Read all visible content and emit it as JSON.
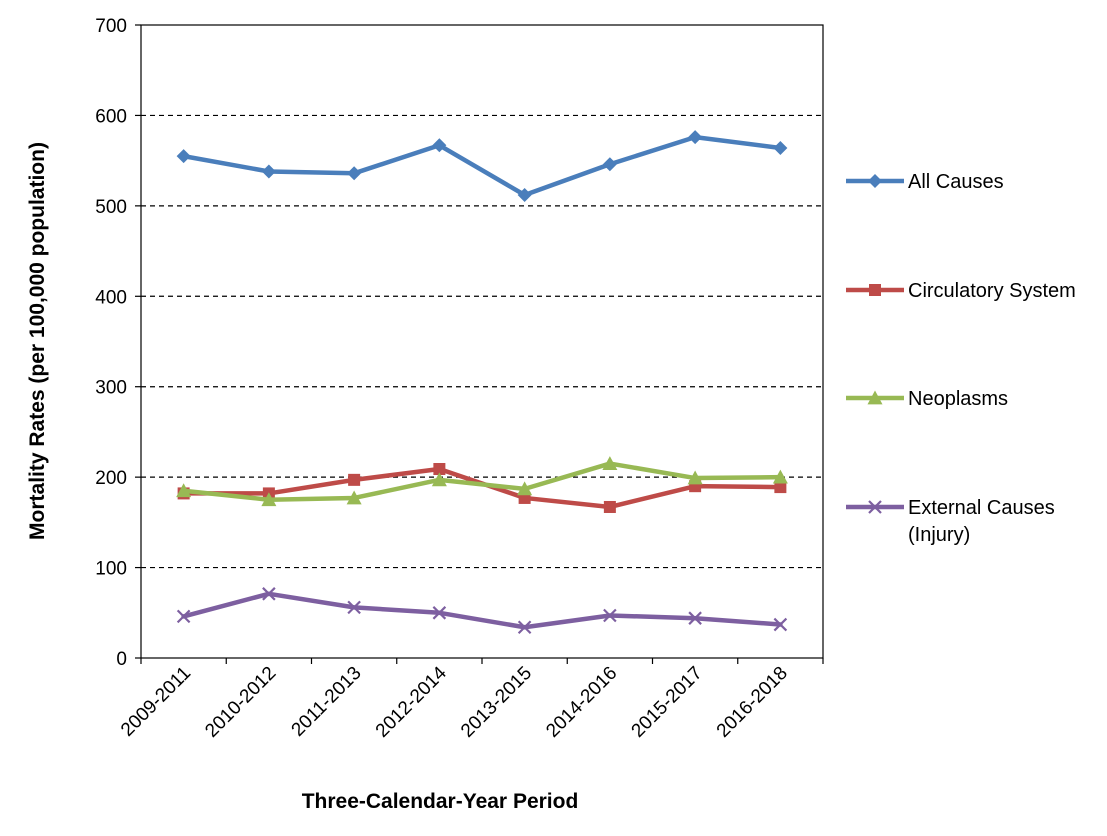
{
  "chart_data": {
    "type": "line",
    "title": "",
    "xlabel": "Three-Calendar-Year Period",
    "ylabel": "Mortality Rates (per 100,000 population)",
    "ylim": [
      0,
      700
    ],
    "yticks": [
      0,
      100,
      200,
      300,
      400,
      500,
      600,
      700
    ],
    "grid": "horizontal dashed",
    "legend_position": "right",
    "categories": [
      "2009-2011",
      "2010-2012",
      "2011-2013",
      "2012-2014",
      "2013-2015",
      "2014-2016",
      "2015-2017",
      "2016-2018"
    ],
    "series": [
      {
        "name": "All Causes",
        "name_lines": [
          "All Causes"
        ],
        "color": "#4a7ebb",
        "marker": "diamond",
        "values": [
          555,
          538,
          536,
          567,
          512,
          546,
          576,
          564
        ]
      },
      {
        "name": "Circulatory System",
        "name_lines": [
          "Circulatory System"
        ],
        "color": "#be4b48",
        "marker": "square",
        "values": [
          182,
          182,
          197,
          209,
          177,
          167,
          190,
          189
        ]
      },
      {
        "name": "Neoplasms",
        "name_lines": [
          "Neoplasms"
        ],
        "color": "#98b954",
        "marker": "triangle",
        "values": [
          185,
          175,
          177,
          197,
          187,
          215,
          199,
          200
        ]
      },
      {
        "name": "External Causes (Injury)",
        "name_lines": [
          "External Causes",
          "(Injury)"
        ],
        "color": "#7d5fa0",
        "marker": "x",
        "values": [
          46,
          71,
          56,
          50,
          34,
          47,
          44,
          37
        ]
      }
    ]
  }
}
